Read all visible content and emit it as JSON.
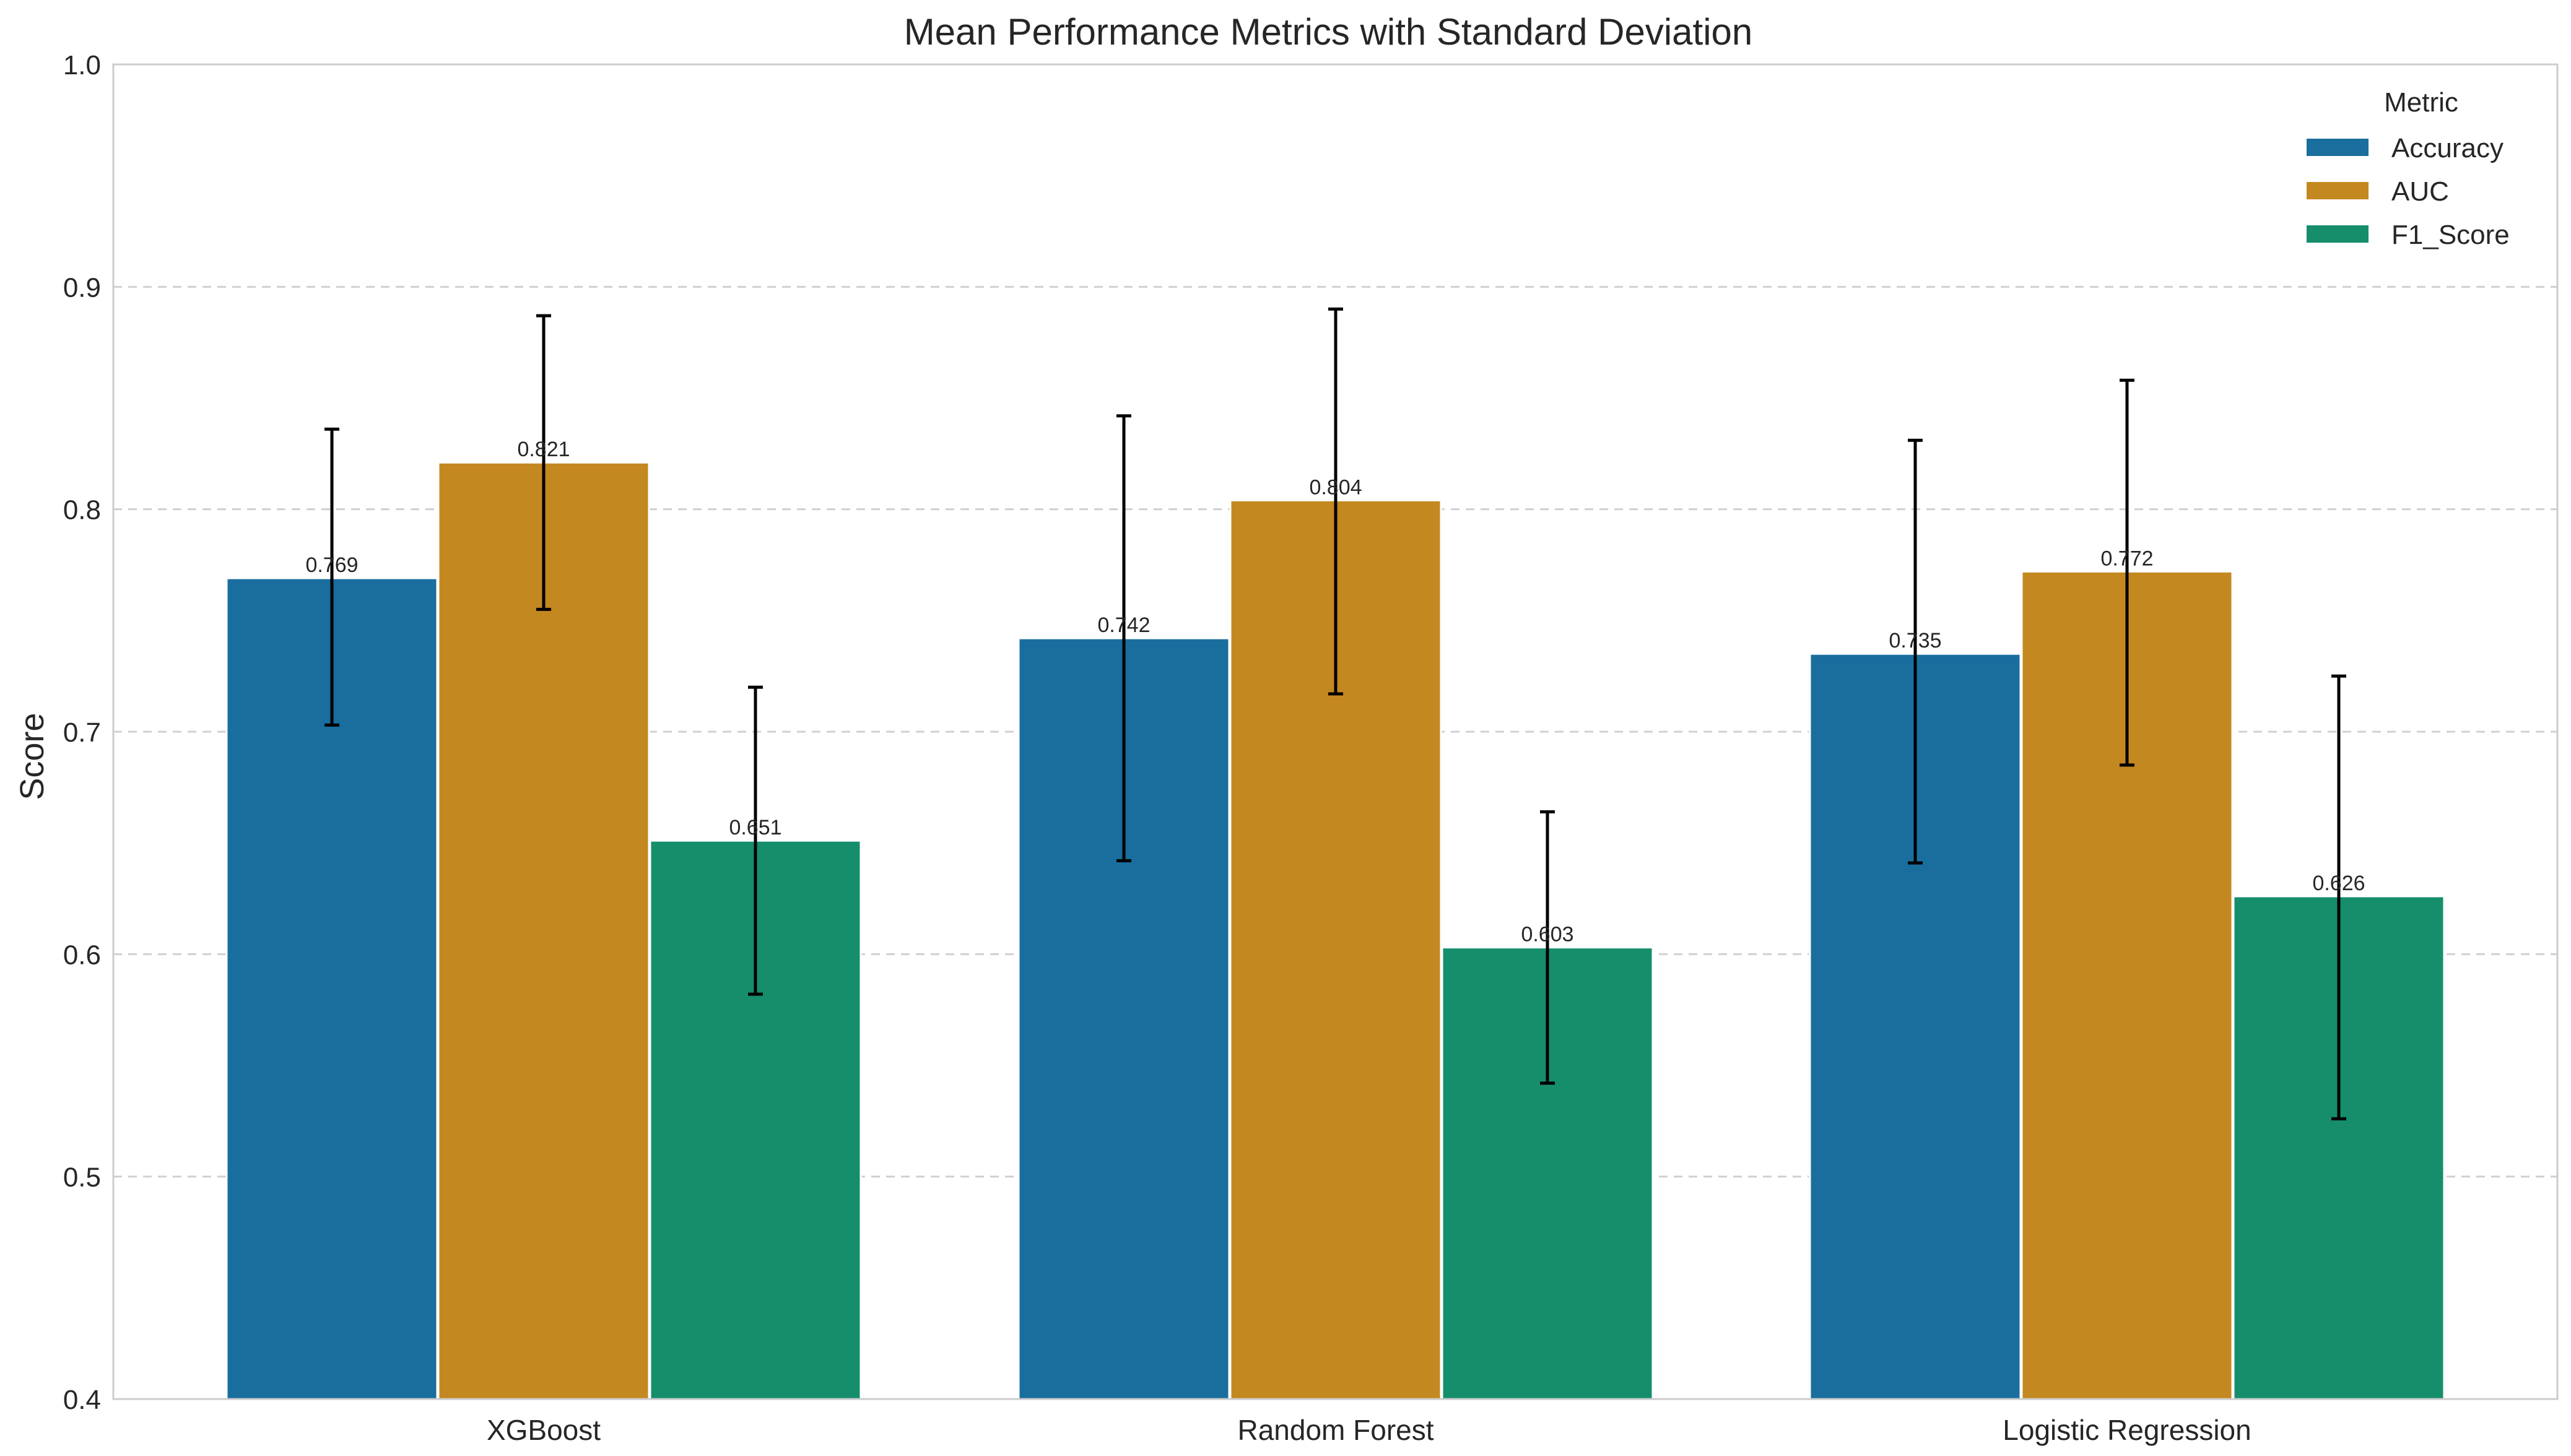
{
  "chart_data": {
    "type": "bar",
    "title": "Mean Performance Metrics with Standard Deviation",
    "xlabel": "",
    "ylabel": "Score",
    "ylim": [
      0.4,
      1.0
    ],
    "yticks": [
      "0.4",
      "0.5",
      "0.6",
      "0.7",
      "0.8",
      "0.9",
      "1.0"
    ],
    "categories": [
      "XGBoost",
      "Random Forest",
      "Logistic Regression"
    ],
    "grid": "y-dashed",
    "legend": {
      "title": "Metric",
      "placement": "top-right"
    },
    "series": [
      {
        "name": "Accuracy",
        "color": "#1a6e9e",
        "values": [
          0.769,
          0.742,
          0.735
        ],
        "labels": [
          "0.769",
          "0.742",
          "0.735"
        ],
        "err_low": [
          0.703,
          0.642,
          0.641
        ],
        "err_high": [
          0.836,
          0.842,
          0.831
        ]
      },
      {
        "name": "AUC",
        "color": "#c48820",
        "values": [
          0.821,
          0.804,
          0.772
        ],
        "labels": [
          "0.821",
          "0.804",
          "0.772"
        ],
        "err_low": [
          0.755,
          0.717,
          0.685
        ],
        "err_high": [
          0.887,
          0.89,
          0.858
        ]
      },
      {
        "name": "F1_Score",
        "color": "#168e6c",
        "values": [
          0.651,
          0.603,
          0.626
        ],
        "labels": [
          "0.651",
          "0.603",
          "0.626"
        ],
        "err_low": [
          0.582,
          0.542,
          0.526
        ],
        "err_high": [
          0.72,
          0.664,
          0.725
        ]
      }
    ]
  }
}
